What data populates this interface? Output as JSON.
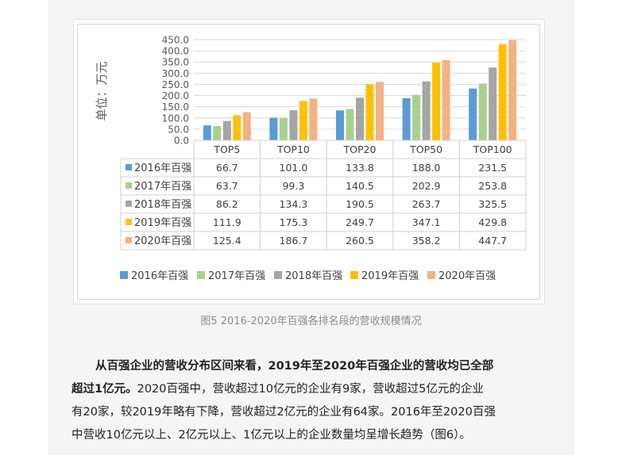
{
  "chart_data": {
    "type": "bar",
    "ylabel": "单位：万元",
    "ylim": [
      0,
      450
    ],
    "yticks": [
      "0.0",
      "50.0",
      "100.0",
      "150.0",
      "200.0",
      "250.0",
      "300.0",
      "350.0",
      "400.0",
      "450.0"
    ],
    "categories": [
      "TOP5",
      "TOP10",
      "TOP20",
      "TOP50",
      "TOP100"
    ],
    "series": [
      {
        "name": "2016年百强",
        "color": "#5b9bd5",
        "values": [
          66.7,
          101.0,
          133.8,
          188.0,
          231.5
        ],
        "labels": [
          "66.7",
          "101.0",
          "133.8",
          "188.0",
          "231.5"
        ]
      },
      {
        "name": "2017年百强",
        "color": "#a9d18e",
        "values": [
          63.7,
          99.3,
          140.5,
          202.9,
          253.8
        ],
        "labels": [
          "63.7",
          "99.3",
          "140.5",
          "202.9",
          "253.8"
        ]
      },
      {
        "name": "2018年百强",
        "color": "#a5a5a5",
        "values": [
          86.2,
          134.3,
          190.5,
          263.7,
          325.5
        ],
        "labels": [
          "86.2",
          "134.3",
          "190.5",
          "263.7",
          "325.5"
        ]
      },
      {
        "name": "2019年百强",
        "color": "#ffc000",
        "values": [
          111.9,
          175.3,
          249.7,
          347.1,
          429.8
        ],
        "labels": [
          "111.9",
          "175.3",
          "249.7",
          "347.1",
          "429.8"
        ]
      },
      {
        "name": "2020年百强",
        "color": "#f4b183",
        "values": [
          125.4,
          186.7,
          260.5,
          358.2,
          447.7
        ],
        "labels": [
          "125.4",
          "186.7",
          "260.5",
          "358.2",
          "447.7"
        ]
      }
    ],
    "grid": true,
    "legend_position": "bottom",
    "data_table": true
  },
  "caption": "图5 2016-2020年百强各排名段的营收规模情况",
  "paragraph": {
    "bold": "从百强企业的营收分布区间来看，2019年至2020年百强企业的营收均已全部超过1亿元。",
    "line1": "从百强企业的营收分布区间来看，2019年至2020年百强企业的营收均已全部",
    "line2_bold": "超过1亿元。",
    "line2_rest": "2020百强中，营收超过10亿元的企业有9家，营收超过5亿元的企业",
    "line3": "有20家，较2019年略有下降，营收超过2亿元的企业有64家。2016年至2020百强",
    "line4": "中营收10亿元以上、2亿元以上、1亿元以上的企业数量均呈增长趋势（图6）。"
  }
}
